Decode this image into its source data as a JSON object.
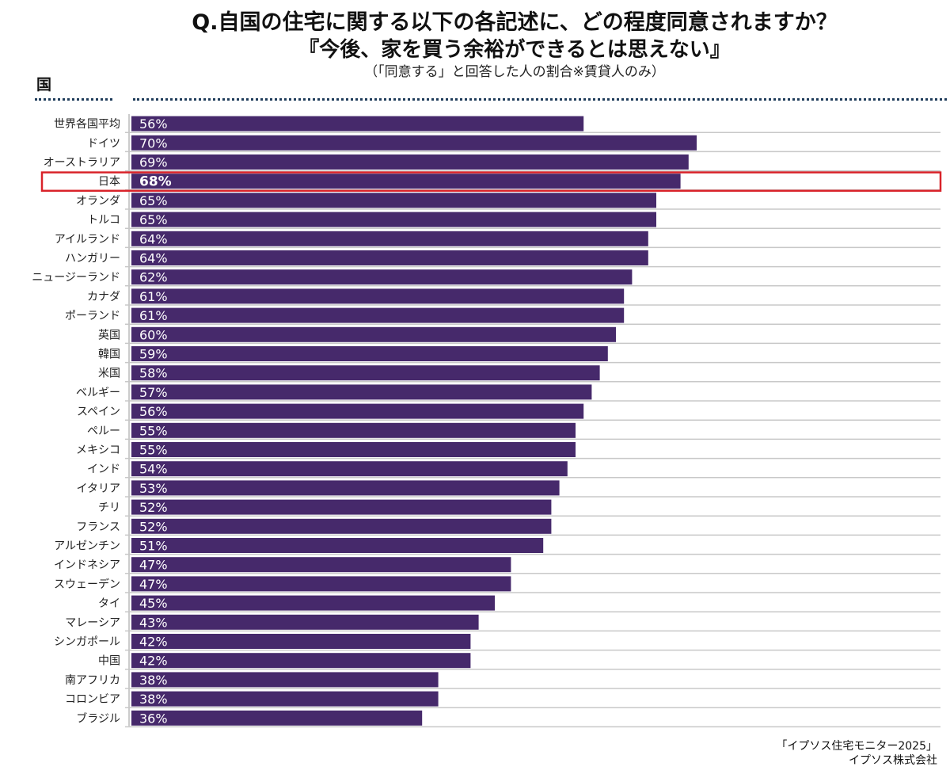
{
  "title_line1": "Q.自国の住宅に関する以下の各記述に、どの程度同意されますか？",
  "title_line2": "『今後、家を買う余裕ができるとは思えない』",
  "subtitle": "（「同意する」と回答した人の割合※賃貸人のみ）",
  "column_header": "国",
  "source_line1": "「イプソス住宅モニター2025」",
  "source_line2": "イプソス株式会社",
  "colors": {
    "bar": "#46296b",
    "highlight": "#d9232a",
    "gridline": "#c8c8c8",
    "label_text": "#ffffff"
  },
  "chart_data": {
    "type": "bar",
    "orientation": "horizontal",
    "highlighted_category": "日本",
    "value_suffix": "%",
    "xlim": [
      0,
      100
    ],
    "categories": [
      "世界各国平均",
      "ドイツ",
      "オーストラリア",
      "日本",
      "オランダ",
      "トルコ",
      "アイルランド",
      "ハンガリー",
      "ニュージーランド",
      "カナダ",
      "ポーランド",
      "英国",
      "韓国",
      "米国",
      "ベルギー",
      "スペイン",
      "ペルー",
      "メキシコ",
      "インド",
      "イタリア",
      "チリ",
      "フランス",
      "アルゼンチン",
      "インドネシア",
      "スウェーデン",
      "タイ",
      "マレーシア",
      "シンガポール",
      "中国",
      "南アフリカ",
      "コロンビア",
      "ブラジル"
    ],
    "values": [
      56,
      70,
      69,
      68,
      65,
      65,
      64,
      64,
      62,
      61,
      61,
      60,
      59,
      58,
      57,
      56,
      55,
      55,
      54,
      53,
      52,
      52,
      51,
      47,
      47,
      45,
      43,
      42,
      42,
      38,
      38,
      36
    ]
  }
}
